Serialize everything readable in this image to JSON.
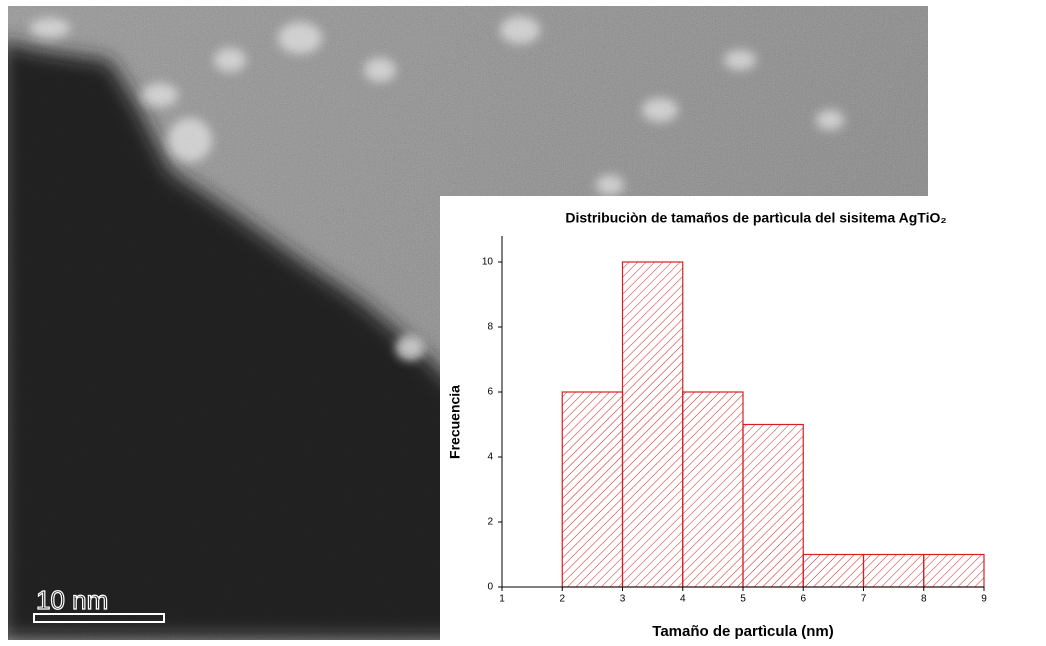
{
  "image": {
    "scale_bar_label": "10 nm"
  },
  "chart_data": {
    "type": "histogram",
    "title": "Distribuciòn de tamaños de partìcula del sisitema AgTiO₂",
    "x_label": "Tamaño de partìcula (nm)",
    "y_label": "Frecuencia",
    "bins": [
      2,
      3,
      4,
      5,
      6,
      7,
      8,
      9
    ],
    "values": [
      6,
      10,
      6,
      5,
      1,
      1,
      1
    ],
    "color": "#d42020",
    "xlim": [
      1,
      9
    ],
    "xticks": [
      1,
      2,
      3,
      4,
      5,
      6,
      7,
      8,
      9
    ],
    "ylim": [
      0,
      10.8
    ],
    "yticks": [
      0,
      2,
      4,
      6,
      8,
      10
    ]
  }
}
